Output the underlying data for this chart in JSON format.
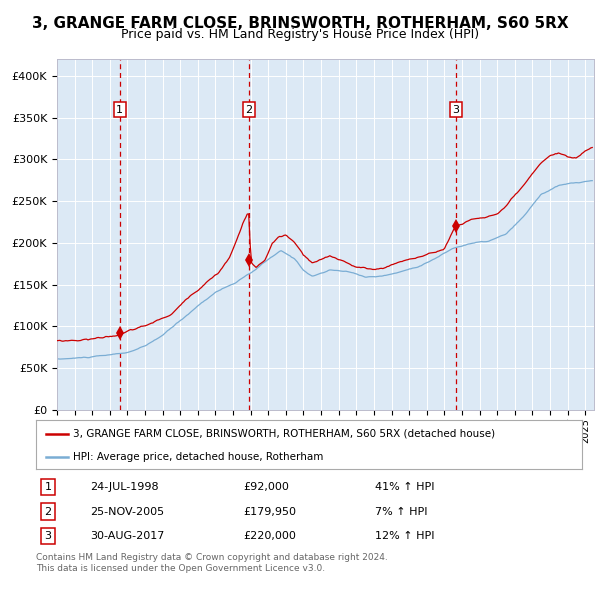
{
  "title": "3, GRANGE FARM CLOSE, BRINSWORTH, ROTHERHAM, S60 5RX",
  "subtitle": "Price paid vs. HM Land Registry's House Price Index (HPI)",
  "fig_bg_color": "#ffffff",
  "plot_bg_color": "#dce9f5",
  "ylim": [
    0,
    420000
  ],
  "yticks": [
    0,
    50000,
    100000,
    150000,
    200000,
    250000,
    300000,
    350000,
    400000
  ],
  "ytick_labels": [
    "£0",
    "£50K",
    "£100K",
    "£150K",
    "£200K",
    "£250K",
    "£300K",
    "£350K",
    "£400K"
  ],
  "xlim_start": 1995.0,
  "xlim_end": 2025.5,
  "sale_dates": [
    1998.56,
    2005.9,
    2017.66
  ],
  "sale_prices": [
    92000,
    179950,
    220000
  ],
  "sale_labels": [
    "1",
    "2",
    "3"
  ],
  "legend_entries": [
    "3, GRANGE FARM CLOSE, BRINSWORTH, ROTHERHAM, S60 5RX (detached house)",
    "HPI: Average price, detached house, Rotherham"
  ],
  "table_rows": [
    [
      "1",
      "24-JUL-1998",
      "£92,000",
      "41% ↑ HPI"
    ],
    [
      "2",
      "25-NOV-2005",
      "£179,950",
      "7% ↑ HPI"
    ],
    [
      "3",
      "30-AUG-2017",
      "£220,000",
      "12% ↑ HPI"
    ]
  ],
  "footer_text": "Contains HM Land Registry data © Crown copyright and database right 2024.\nThis data is licensed under the Open Government Licence v3.0.",
  "red_color": "#cc0000",
  "blue_color": "#7aadd4",
  "marker_color": "#cc0000",
  "title_fontsize": 11,
  "subtitle_fontsize": 9
}
